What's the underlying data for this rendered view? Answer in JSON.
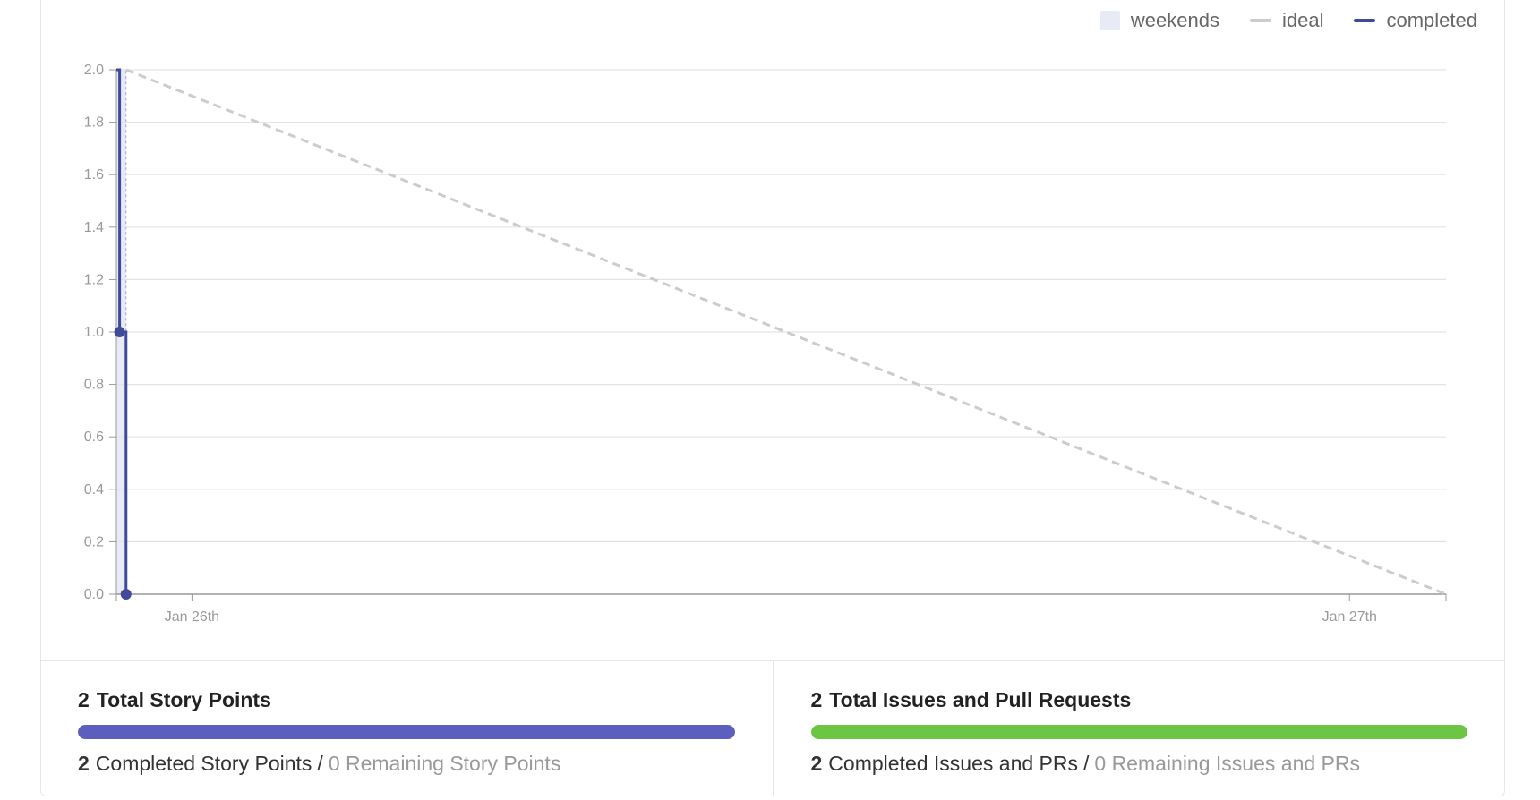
{
  "legend": {
    "weekends": "weekends",
    "ideal": "ideal",
    "completed": "completed"
  },
  "colors": {
    "weekends": "#e8eaf6",
    "ideal": "#cccccc",
    "completed": "#3f4a9a",
    "story_bar": "#5c5fbd",
    "issues_bar": "#6cc644"
  },
  "chart_data": {
    "type": "line",
    "ylim": [
      0,
      2.0
    ],
    "yticks": [
      "0.0",
      "0.2",
      "0.4",
      "0.6",
      "0.8",
      "1.0",
      "1.2",
      "1.4",
      "1.6",
      "1.8",
      "2.0"
    ],
    "xticks": [
      "Jan 26th",
      "Jan 27th"
    ],
    "xlim": [
      "2024-01-25T22:26",
      "2024-01-27T02:00"
    ],
    "grid": true,
    "legend_placement": "top-right",
    "series": [
      {
        "name": "ideal",
        "style": "dashed",
        "points": [
          {
            "x": "2024-01-25T22:38",
            "y": 2.0
          },
          {
            "x": "2024-01-27T02:00",
            "y": 0.0
          }
        ]
      },
      {
        "name": "completed",
        "style": "step",
        "points": [
          {
            "x": "2024-01-25T22:26",
            "y": 2.0
          },
          {
            "x": "2024-01-25T22:30",
            "y": 2.0
          },
          {
            "x": "2024-01-25T22:30",
            "y": 1.0
          },
          {
            "x": "2024-01-25T22:38",
            "y": 1.0
          },
          {
            "x": "2024-01-25T22:38",
            "y": 0.0
          }
        ],
        "markers": [
          {
            "x": "2024-01-25T22:30",
            "y": 1.0
          },
          {
            "x": "2024-01-25T22:38",
            "y": 0.0
          }
        ]
      }
    ],
    "weekend_bands": [
      {
        "x0": "2024-01-25T22:26",
        "x1": "2024-01-25T22:38"
      }
    ]
  },
  "story_points": {
    "total": "2",
    "title": "Total Story Points",
    "completed_num": "2",
    "completed_label": "Completed Story Points",
    "separator": "/",
    "remaining": "0 Remaining Story Points",
    "progress": 1.0
  },
  "issues": {
    "total": "2",
    "title": "Total Issues and Pull Requests",
    "completed_num": "2",
    "completed_label": "Completed Issues and PRs",
    "separator": "/",
    "remaining": "0 Remaining Issues and PRs",
    "progress": 1.0
  }
}
